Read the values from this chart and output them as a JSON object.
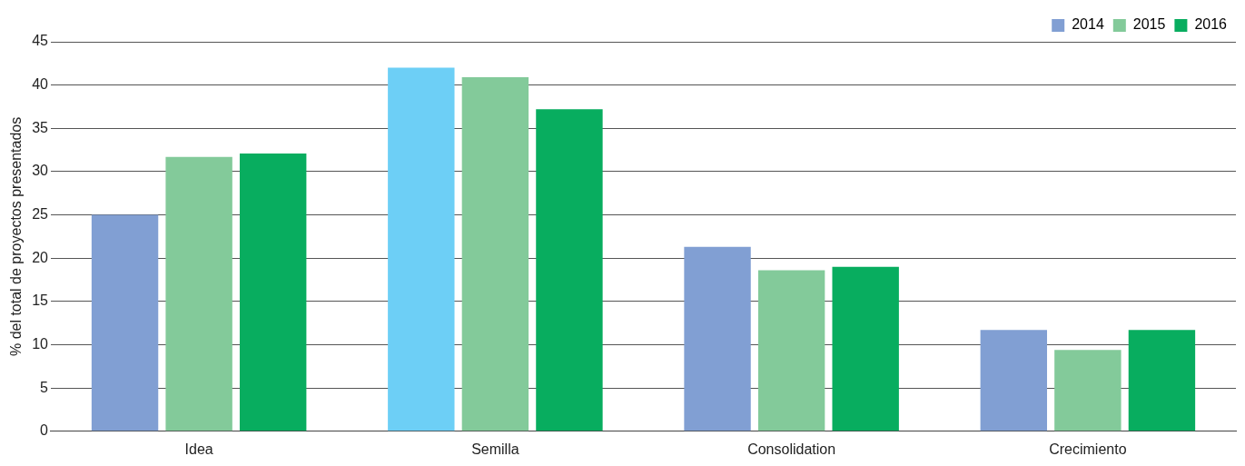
{
  "chart_data": {
    "type": "bar",
    "ylabel": "% del total de proyectos presentados",
    "categories": [
      "Idea",
      "Semilla",
      "Consolidation",
      "Crecimiento"
    ],
    "series": [
      {
        "name": "2014",
        "color": "#819fd3",
        "colors": [
          "#819fd3",
          "#6dcff6",
          "#819fd3",
          "#819fd3"
        ],
        "values": [
          25.0,
          42.0,
          21.3,
          11.7
        ]
      },
      {
        "name": "2015",
        "color": "#83ca9a",
        "values": [
          31.7,
          40.9,
          18.6,
          9.4
        ]
      },
      {
        "name": "2016",
        "color": "#08ad5f",
        "values": [
          32.1,
          37.2,
          19.0,
          11.7
        ]
      }
    ],
    "ylim": [
      0,
      45
    ],
    "yticks": [
      0,
      5,
      10,
      15,
      20,
      25,
      30,
      35,
      40,
      45
    ],
    "grid": "y",
    "legend": "top right"
  }
}
